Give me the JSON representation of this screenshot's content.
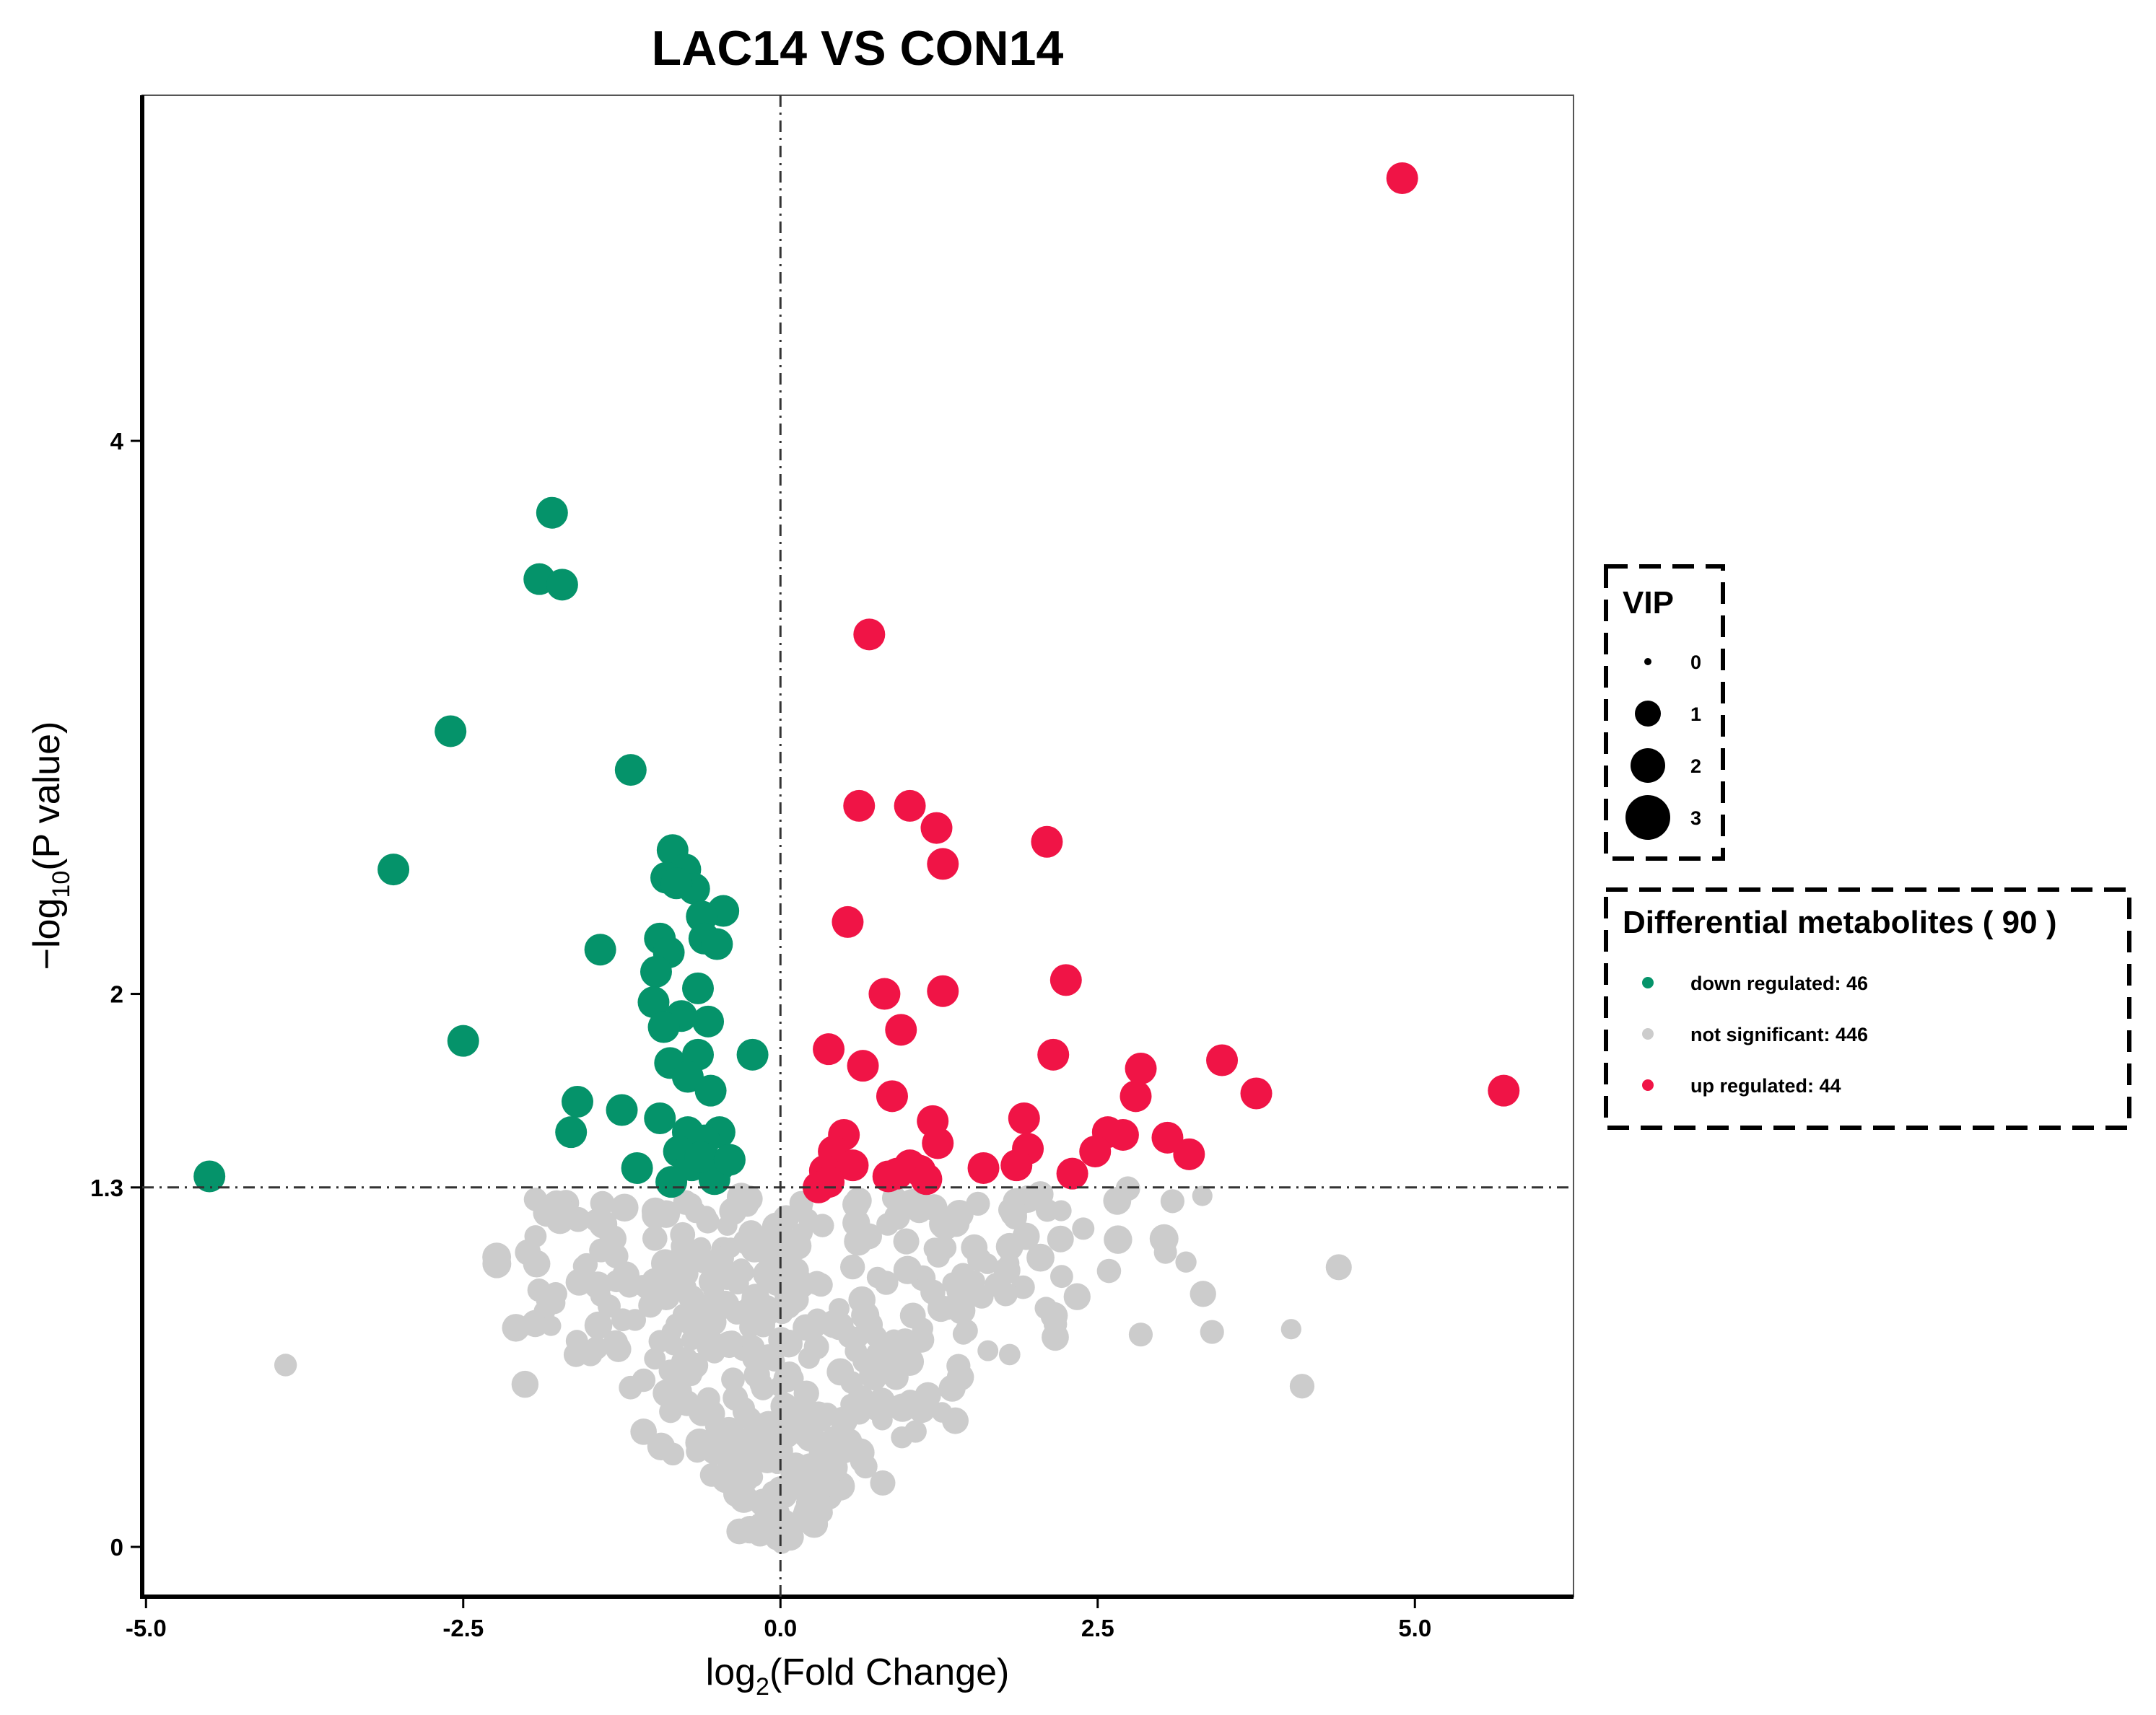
{
  "chart_data": {
    "type": "scatter",
    "title": "LAC14 VS CON14",
    "xlabel_main": "log",
    "xlabel_sub": "2",
    "xlabel_rest": "(Fold Change)",
    "ylabel_main": "−log",
    "ylabel_sub": "10",
    "ylabel_rest": "(P value)",
    "xlim": [
      -5.03,
      6.25
    ],
    "ylim": [
      -0.18,
      5.25
    ],
    "x_ticks": [
      -5.0,
      -2.5,
      0.0,
      2.5,
      5.0
    ],
    "x_tick_labels": [
      "-5.0",
      "-2.5",
      "0.0",
      "2.5",
      "5.0"
    ],
    "y_ticks": [
      0,
      1.3,
      2,
      4
    ],
    "y_tick_labels": [
      "0",
      "1.3",
      "2",
      "4"
    ],
    "threshold_lines": {
      "x": 0,
      "y": 1.3
    },
    "grid": false,
    "colors": {
      "down": "#05936a",
      "ns": "#cccccc",
      "up": "#f01446"
    },
    "size_legend": {
      "title": "VIP",
      "values": [
        0,
        1,
        2,
        3
      ],
      "labels": [
        "0",
        "1",
        "2",
        "3"
      ]
    },
    "color_legend": {
      "title": "Differential metabolites ( 90 )",
      "entries": [
        {
          "key": "down",
          "label": "down regulated: 46"
        },
        {
          "key": "ns",
          "label": "not significant: 446"
        },
        {
          "key": "up",
          "label": "up regulated: 44"
        }
      ]
    },
    "series": [
      {
        "name": "down regulated",
        "key": "down",
        "points": [
          [
            -4.5,
            1.34
          ],
          [
            -3.05,
            2.45
          ],
          [
            -2.6,
            2.95
          ],
          [
            -2.5,
            1.83
          ],
          [
            -1.8,
            3.74
          ],
          [
            -1.9,
            3.5
          ],
          [
            -1.72,
            3.48
          ],
          [
            -1.18,
            2.81
          ],
          [
            -1.42,
            2.16
          ],
          [
            -1.6,
            1.61
          ],
          [
            -1.65,
            1.5
          ],
          [
            -1.25,
            1.58
          ],
          [
            -1.13,
            1.37
          ],
          [
            -0.85,
            2.52
          ],
          [
            -0.75,
            2.45
          ],
          [
            -0.9,
            2.42
          ],
          [
            -0.68,
            2.38
          ],
          [
            -0.82,
            2.4
          ],
          [
            -0.45,
            2.3
          ],
          [
            -0.62,
            2.28
          ],
          [
            -0.95,
            2.2
          ],
          [
            -0.88,
            2.15
          ],
          [
            -0.98,
            2.08
          ],
          [
            -0.6,
            2.2
          ],
          [
            -0.5,
            2.18
          ],
          [
            -0.65,
            2.02
          ],
          [
            -1.0,
            1.97
          ],
          [
            -0.87,
            1.75
          ],
          [
            -0.65,
            1.78
          ],
          [
            -0.73,
            1.7
          ],
          [
            -0.55,
            1.65
          ],
          [
            -0.22,
            1.78
          ],
          [
            -0.73,
            1.5
          ],
          [
            -0.48,
            1.5
          ],
          [
            -0.6,
            1.47
          ],
          [
            -0.8,
            1.43
          ],
          [
            -0.7,
            1.38
          ],
          [
            -0.48,
            1.38
          ],
          [
            -0.86,
            1.32
          ],
          [
            -0.52,
            1.33
          ],
          [
            -0.63,
            1.41
          ],
          [
            -0.4,
            1.4
          ],
          [
            -0.95,
            1.55
          ],
          [
            -0.57,
            1.9
          ],
          [
            -0.78,
            1.92
          ],
          [
            -0.92,
            1.88
          ]
        ]
      },
      {
        "name": "up regulated",
        "key": "up",
        "points": [
          [
            4.9,
            4.95
          ],
          [
            0.7,
            3.3
          ],
          [
            0.62,
            2.68
          ],
          [
            1.02,
            2.68
          ],
          [
            1.23,
            2.6
          ],
          [
            2.1,
            2.55
          ],
          [
            1.28,
            2.47
          ],
          [
            0.53,
            2.26
          ],
          [
            0.82,
            2.0
          ],
          [
            1.28,
            2.01
          ],
          [
            2.25,
            2.05
          ],
          [
            0.95,
            1.87
          ],
          [
            0.38,
            1.8
          ],
          [
            0.65,
            1.74
          ],
          [
            2.15,
            1.78
          ],
          [
            2.84,
            1.73
          ],
          [
            3.48,
            1.76
          ],
          [
            5.7,
            1.65
          ],
          [
            0.88,
            1.63
          ],
          [
            1.92,
            1.55
          ],
          [
            2.8,
            1.63
          ],
          [
            3.75,
            1.64
          ],
          [
            0.5,
            1.49
          ],
          [
            1.2,
            1.54
          ],
          [
            2.58,
            1.5
          ],
          [
            2.7,
            1.49
          ],
          [
            3.05,
            1.48
          ],
          [
            1.24,
            1.46
          ],
          [
            0.42,
            1.43
          ],
          [
            1.95,
            1.44
          ],
          [
            2.48,
            1.43
          ],
          [
            3.22,
            1.42
          ],
          [
            0.35,
            1.36
          ],
          [
            0.57,
            1.38
          ],
          [
            1.02,
            1.38
          ],
          [
            1.1,
            1.36
          ],
          [
            1.86,
            1.38
          ],
          [
            0.85,
            1.34
          ],
          [
            0.92,
            1.35
          ],
          [
            0.38,
            1.32
          ],
          [
            1.15,
            1.33
          ],
          [
            0.3,
            1.3
          ],
          [
            1.6,
            1.37
          ],
          [
            2.3,
            1.35
          ]
        ]
      }
    ]
  }
}
